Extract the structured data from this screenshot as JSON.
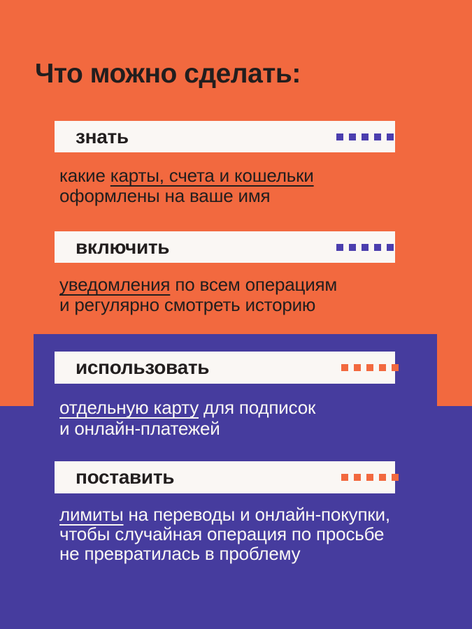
{
  "page": {
    "title": "Что можно сделать:"
  },
  "colors": {
    "orange_bg": "#F2693F",
    "purple_bg": "#463C9E",
    "banner_bg": "#FAF7F4",
    "text_dark": "#221E1E",
    "text_light": "#FAF7F4",
    "dot_purple": "#4B3EAE",
    "dot_orange": "#F2693F"
  },
  "sections": [
    {
      "label": "знать",
      "dot_style": "purple",
      "lines": [
        {
          "pre": "какие ",
          "u": "карты, счета и кошельки",
          "post": ""
        },
        {
          "pre": "оформлены на ваше имя",
          "u": "",
          "post": ""
        }
      ]
    },
    {
      "label": "включить",
      "dot_style": "purple",
      "lines": [
        {
          "pre": "",
          "u": "уведомления",
          "post": " по всем операциям"
        },
        {
          "pre": "и регулярно смотреть историю",
          "u": "",
          "post": ""
        }
      ]
    },
    {
      "label": "использовать",
      "dot_style": "orange",
      "lines": [
        {
          "pre": "",
          "u": "отдельную карту",
          "post": " для подписок"
        },
        {
          "pre": "и онлайн-платежей",
          "u": "",
          "post": ""
        }
      ]
    },
    {
      "label": "поставить",
      "dot_style": "orange",
      "lines": [
        {
          "pre": "",
          "u": "лимиты",
          "post": " на переводы и онлайн-покупки,"
        },
        {
          "pre": "чтобы случайная операция по просьбе",
          "u": "",
          "post": ""
        },
        {
          "pre": "не превратилась в проблему",
          "u": "",
          "post": ""
        }
      ]
    }
  ]
}
